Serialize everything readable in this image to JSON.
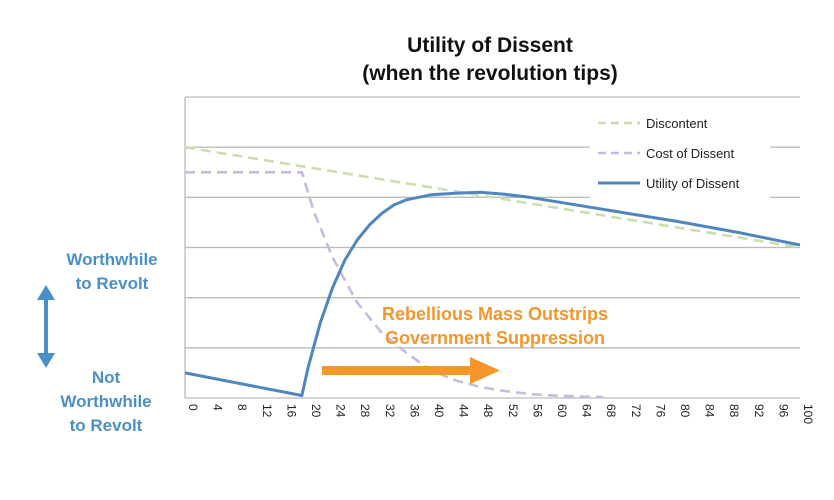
{
  "chart_data": {
    "type": "line",
    "title": "Utility of Dissent",
    "subtitle": "(when the revolution tips)",
    "x": [
      0,
      4,
      8,
      12,
      16,
      20,
      24,
      28,
      32,
      36,
      40,
      44,
      48,
      52,
      56,
      60,
      64,
      68,
      72,
      76,
      80,
      84,
      88,
      92,
      96,
      100
    ],
    "xlim": [
      0,
      100
    ],
    "ylim": [
      0,
      6
    ],
    "grid": true,
    "legend_position": "top-right",
    "series": [
      {
        "name": "Discontent",
        "style": "dashed",
        "color": "#c9dfb0",
        "points": [
          [
            0,
            5
          ],
          [
            100,
            3
          ]
        ]
      },
      {
        "name": "Cost of Dissent",
        "style": "dashed",
        "color": "#c9b9e0",
        "points": [
          [
            0,
            4.5
          ],
          [
            19,
            4.5
          ],
          [
            21,
            3.7
          ],
          [
            24,
            2.8
          ],
          [
            28,
            1.9
          ],
          [
            32,
            1.3
          ],
          [
            36,
            0.9
          ],
          [
            40,
            0.55
          ],
          [
            44,
            0.35
          ],
          [
            48,
            0.22
          ],
          [
            52,
            0.14
          ],
          [
            56,
            0.08
          ],
          [
            60,
            0.05
          ],
          [
            64,
            0.03
          ],
          [
            68,
            0.02
          ]
        ]
      },
      {
        "name": "Utility of Dissent",
        "style": "solid",
        "color": "#4f86bd",
        "points": [
          [
            0,
            0.5
          ],
          [
            19,
            0.05
          ],
          [
            20,
            0.6
          ],
          [
            22,
            1.5
          ],
          [
            24,
            2.2
          ],
          [
            26,
            2.75
          ],
          [
            28,
            3.15
          ],
          [
            30,
            3.45
          ],
          [
            32,
            3.68
          ],
          [
            34,
            3.85
          ],
          [
            36,
            3.95
          ],
          [
            40,
            4.05
          ],
          [
            44,
            4.08
          ],
          [
            48,
            4.1
          ],
          [
            52,
            4.06
          ],
          [
            56,
            4.0
          ],
          [
            60,
            3.92
          ],
          [
            70,
            3.72
          ],
          [
            80,
            3.52
          ],
          [
            90,
            3.3
          ],
          [
            100,
            3.05
          ]
        ]
      }
    ],
    "annotations": {
      "left_top": [
        "Worthwhile",
        "to Revolt"
      ],
      "left_bottom": [
        "Not",
        "Worthwhile",
        "to Revolt"
      ],
      "center": [
        "Rebellious Mass Outstrips",
        "Government Suppression"
      ]
    },
    "colors": {
      "annotation_blue": "#4a90c8",
      "annotation_orange": "#f5962a",
      "gridline": "#bbbbbb"
    }
  }
}
